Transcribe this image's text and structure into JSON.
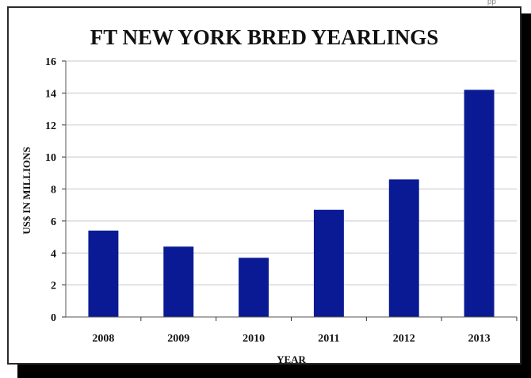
{
  "header_fragment": "pp",
  "chart_data": {
    "type": "bar",
    "title": "FT NEW YORK BRED YEARLINGS",
    "xlabel": "YEAR",
    "ylabel": "US$ IN MILLIONS",
    "categories": [
      "2008",
      "2009",
      "2010",
      "2011",
      "2012",
      "2013"
    ],
    "values": [
      5.4,
      4.4,
      3.7,
      6.7,
      8.6,
      14.2
    ],
    "ylim": [
      0,
      16
    ],
    "yticks": [
      0,
      2,
      4,
      6,
      8,
      10,
      12,
      14,
      16
    ],
    "grid": true,
    "bar_color": "#0a1a94",
    "grid_color": "#c8c8c8"
  }
}
